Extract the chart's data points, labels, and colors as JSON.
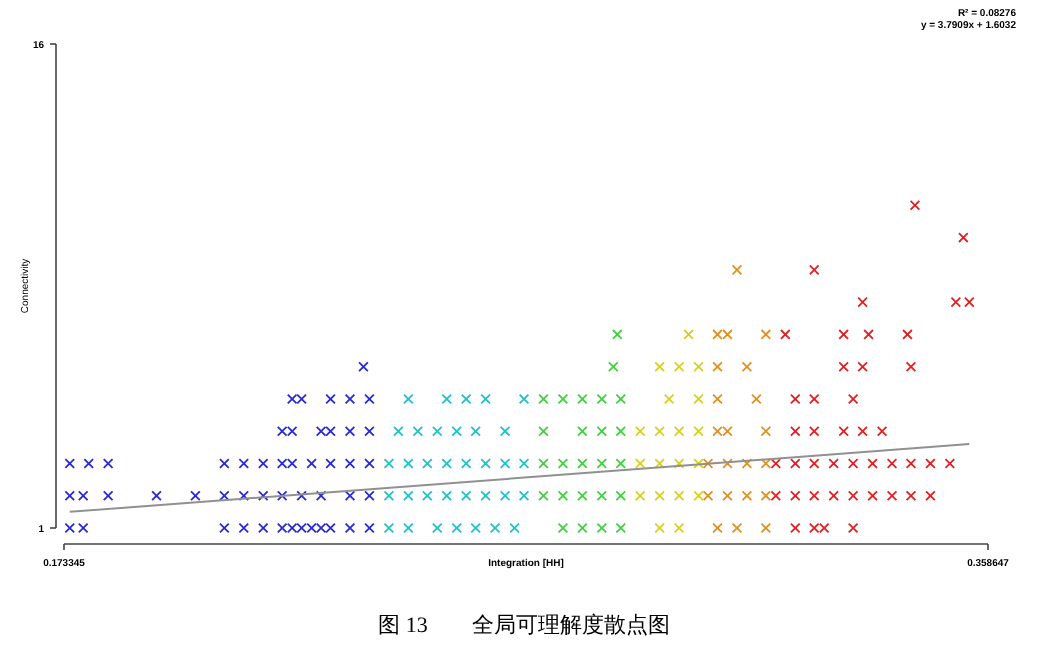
{
  "chart_data": {
    "type": "scatter",
    "title": "图 13　　全局可理解度散点图",
    "xlabel": "Integration [HH]",
    "ylabel": "Connectivity",
    "annotations": [
      "R² = 0.08276",
      "y = 3.7909x + 1.6032"
    ],
    "xlim": [
      0.173345,
      0.358647
    ],
    "xticks": [
      0.173345,
      0.358647
    ],
    "ylim": [
      1,
      16
    ],
    "yticks": [
      1,
      16
    ],
    "marker": "cross",
    "series": [
      {
        "color": "#2a2ad0",
        "x": [
          0.1745,
          0.1772,
          0.2055,
          0.2094,
          0.2133,
          0.2171,
          0.2191,
          0.221,
          0.223,
          0.2249,
          0.2268,
          0.2307,
          0.2346,
          0.1745,
          0.1772,
          0.1822,
          0.1919,
          0.1997,
          0.2055,
          0.2094,
          0.2133,
          0.2171,
          0.221,
          0.2249,
          0.2307,
          0.2346,
          0.1745,
          0.1783,
          0.1822,
          0.2055,
          0.2094,
          0.2133,
          0.2171,
          0.2191,
          0.223,
          0.2268,
          0.2307,
          0.2346,
          0.2171,
          0.2191,
          0.2249,
          0.2268,
          0.2307,
          0.2346,
          0.2191,
          0.221,
          0.2268,
          0.2307,
          0.2346,
          0.2334
        ],
        "values": [
          1,
          1,
          1,
          1,
          1,
          1,
          1,
          1,
          1,
          1,
          1,
          1,
          1,
          2,
          2,
          2,
          2,
          2,
          2,
          2,
          2,
          2,
          2,
          2,
          2,
          2,
          3,
          3,
          3,
          3,
          3,
          3,
          3,
          3,
          3,
          3,
          3,
          3,
          4,
          4,
          4,
          4,
          4,
          4,
          5,
          5,
          5,
          5,
          5,
          6
        ]
      },
      {
        "color": "#20c0d0",
        "x": [
          0.2385,
          0.2424,
          0.2482,
          0.2521,
          0.2559,
          0.2598,
          0.2637,
          0.2385,
          0.2424,
          0.2462,
          0.2501,
          0.254,
          0.2579,
          0.2618,
          0.2656,
          0.2385,
          0.2424,
          0.2462,
          0.2501,
          0.254,
          0.2579,
          0.2618,
          0.2656,
          0.2404,
          0.2443,
          0.2482,
          0.2521,
          0.2559,
          0.2618,
          0.2424,
          0.2501,
          0.254,
          0.2579,
          0.2656
        ],
        "values": [
          1,
          1,
          1,
          1,
          1,
          1,
          1,
          2,
          2,
          2,
          2,
          2,
          2,
          2,
          2,
          3,
          3,
          3,
          3,
          3,
          3,
          3,
          3,
          4,
          4,
          4,
          4,
          4,
          4,
          5,
          5,
          5,
          5,
          5
        ]
      },
      {
        "color": "#40d040",
        "x": [
          0.2734,
          0.2773,
          0.2812,
          0.285,
          0.2695,
          0.2734,
          0.2773,
          0.2812,
          0.285,
          0.2695,
          0.2734,
          0.2773,
          0.2812,
          0.285,
          0.2695,
          0.2773,
          0.2812,
          0.285,
          0.2695,
          0.2734,
          0.2773,
          0.2812,
          0.285,
          0.2835,
          0.2843
        ],
        "values": [
          1,
          1,
          1,
          1,
          2,
          2,
          2,
          2,
          2,
          3,
          3,
          3,
          3,
          3,
          4,
          4,
          4,
          4,
          5,
          5,
          5,
          5,
          5,
          6,
          7
        ]
      },
      {
        "color": "#d8d020",
        "x": [
          0.2928,
          0.2967,
          0.2889,
          0.2928,
          0.2967,
          0.3006,
          0.2889,
          0.2928,
          0.2967,
          0.3006,
          0.2889,
          0.2928,
          0.2967,
          0.3006,
          0.2947,
          0.3006,
          0.2928,
          0.2967,
          0.3006,
          0.2986
        ],
        "values": [
          1,
          1,
          2,
          2,
          2,
          2,
          3,
          3,
          3,
          3,
          4,
          4,
          4,
          4,
          5,
          5,
          6,
          6,
          6,
          7
        ]
      },
      {
        "color": "#e09020",
        "x": [
          0.3044,
          0.3083,
          0.3141,
          0.3025,
          0.3064,
          0.3103,
          0.3141,
          0.3025,
          0.3064,
          0.3103,
          0.3141,
          0.3044,
          0.3064,
          0.3141,
          0.3044,
          0.3122,
          0.3044,
          0.3103,
          0.3044,
          0.3064,
          0.3141,
          0.3083
        ],
        "values": [
          1,
          1,
          1,
          2,
          2,
          2,
          2,
          3,
          3,
          3,
          3,
          4,
          4,
          4,
          5,
          5,
          6,
          6,
          7,
          7,
          7,
          9
        ]
      },
      {
        "color": "#e02020",
        "x": [
          0.32,
          0.3238,
          0.3258,
          0.3316,
          0.3161,
          0.32,
          0.3238,
          0.3277,
          0.3316,
          0.3355,
          0.3394,
          0.3432,
          0.3471,
          0.3161,
          0.32,
          0.3238,
          0.3277,
          0.3316,
          0.3355,
          0.3394,
          0.3432,
          0.3471,
          0.351,
          0.32,
          0.3238,
          0.3297,
          0.3335,
          0.3374,
          0.32,
          0.3238,
          0.3316,
          0.3297,
          0.3335,
          0.3432,
          0.318,
          0.3297,
          0.3347,
          0.3425,
          0.3335,
          0.3522,
          0.3549,
          0.3238,
          0.3537,
          0.344
        ],
        "values": [
          1,
          1,
          1,
          1,
          2,
          2,
          2,
          2,
          2,
          2,
          2,
          2,
          2,
          3,
          3,
          3,
          3,
          3,
          3,
          3,
          3,
          3,
          3,
          4,
          4,
          4,
          4,
          4,
          5,
          5,
          5,
          6,
          6,
          6,
          7,
          7,
          7,
          7,
          8,
          8,
          8,
          9,
          10,
          11
        ]
      },
      {
        "type": "line",
        "marker": "none",
        "color": "#909090",
        "x": [
          0.1745,
          0.3549
        ],
        "values": [
          1.5,
          3.6
        ]
      }
    ]
  }
}
